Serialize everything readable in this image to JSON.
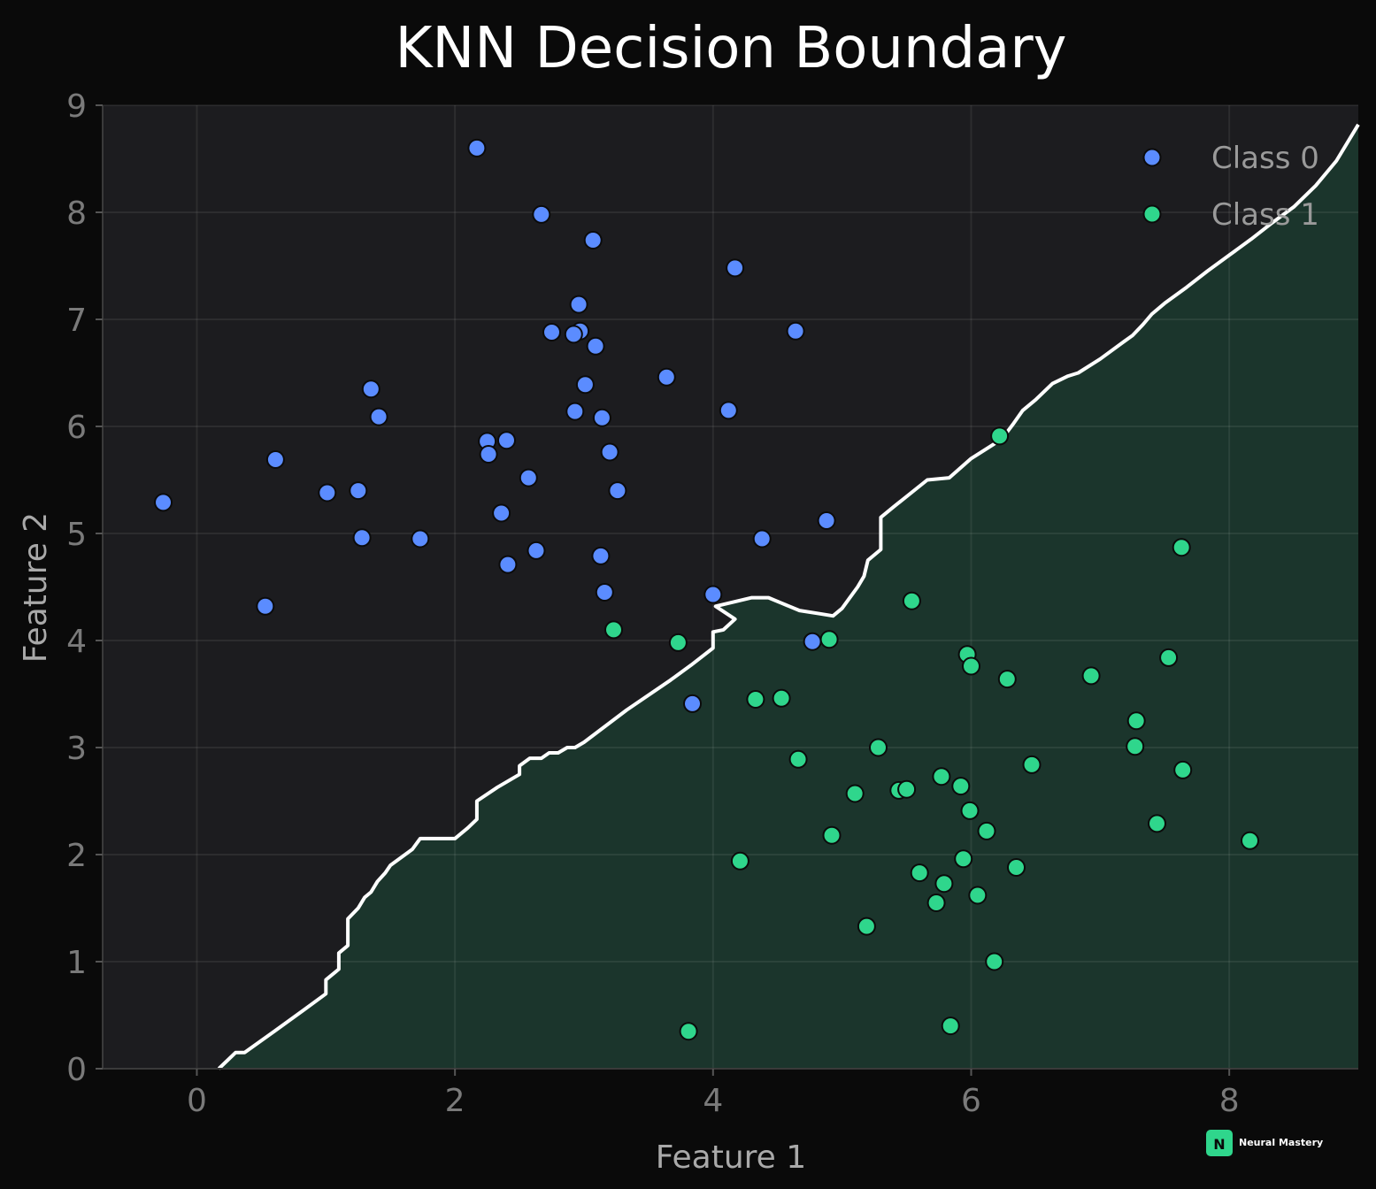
{
  "chart_data": {
    "type": "scatter",
    "title": "KNN Decision Boundary",
    "xlabel": "Feature 1",
    "ylabel": "Feature 2",
    "xlim": [
      -0.73,
      9.0
    ],
    "ylim": [
      0,
      9
    ],
    "xticks": [
      0,
      2,
      4,
      6,
      8
    ],
    "yticks": [
      0,
      1,
      2,
      3,
      4,
      5,
      6,
      7,
      8,
      9
    ],
    "grid": true,
    "legend_position": "top-right",
    "colors": {
      "background": "#0a0a0a",
      "plot_region_class0": "#1c1c1f",
      "plot_region_class1": "#1b352c",
      "boundary": "#ffffff",
      "class0": "#5b8cff",
      "class1": "#2fd68c",
      "marker_edge": "#0b0b0b",
      "brand": "#2fd68c"
    },
    "series": [
      {
        "name": "Class 0",
        "color": "#5b8cff",
        "points": [
          [
            -0.26,
            5.29
          ],
          [
            0.53,
            4.32
          ],
          [
            0.61,
            5.69
          ],
          [
            1.01,
            5.38
          ],
          [
            1.25,
            5.4
          ],
          [
            1.28,
            4.96
          ],
          [
            1.35,
            6.35
          ],
          [
            1.41,
            6.09
          ],
          [
            1.73,
            4.95
          ],
          [
            2.17,
            8.6
          ],
          [
            2.25,
            5.86
          ],
          [
            2.26,
            5.74
          ],
          [
            2.36,
            5.19
          ],
          [
            2.4,
            5.87
          ],
          [
            2.41,
            4.71
          ],
          [
            2.57,
            5.52
          ],
          [
            2.63,
            4.84
          ],
          [
            2.67,
            7.98
          ],
          [
            2.75,
            6.88
          ],
          [
            2.93,
            6.14
          ],
          [
            2.96,
            7.14
          ],
          [
            2.97,
            6.89
          ],
          [
            2.92,
            6.86
          ],
          [
            3.01,
            6.39
          ],
          [
            3.07,
            7.74
          ],
          [
            3.09,
            6.75
          ],
          [
            3.13,
            4.79
          ],
          [
            3.14,
            6.08
          ],
          [
            3.16,
            4.45
          ],
          [
            3.2,
            5.76
          ],
          [
            3.26,
            5.4
          ],
          [
            3.64,
            6.46
          ],
          [
            3.84,
            3.41
          ],
          [
            4.0,
            4.43
          ],
          [
            4.12,
            6.15
          ],
          [
            4.17,
            7.48
          ],
          [
            4.38,
            4.95
          ],
          [
            4.64,
            6.89
          ],
          [
            4.77,
            3.99
          ],
          [
            4.88,
            5.12
          ]
        ]
      },
      {
        "name": "Class 1",
        "color": "#2fd68c",
        "points": [
          [
            3.23,
            4.1
          ],
          [
            3.73,
            3.98
          ],
          [
            3.81,
            0.35
          ],
          [
            4.21,
            1.94
          ],
          [
            4.33,
            3.45
          ],
          [
            4.53,
            3.46
          ],
          [
            4.66,
            2.89
          ],
          [
            4.9,
            4.01
          ],
          [
            4.92,
            2.18
          ],
          [
            5.1,
            2.57
          ],
          [
            5.19,
            1.33
          ],
          [
            5.28,
            3.0
          ],
          [
            5.44,
            2.6
          ],
          [
            5.5,
            2.61
          ],
          [
            5.54,
            4.37
          ],
          [
            5.6,
            1.83
          ],
          [
            5.73,
            1.55
          ],
          [
            5.77,
            2.73
          ],
          [
            5.79,
            1.73
          ],
          [
            5.84,
            0.4
          ],
          [
            5.92,
            2.64
          ],
          [
            5.94,
            1.96
          ],
          [
            5.97,
            3.87
          ],
          [
            5.99,
            2.41
          ],
          [
            6.0,
            3.76
          ],
          [
            6.05,
            1.62
          ],
          [
            6.12,
            2.22
          ],
          [
            6.18,
            1.0
          ],
          [
            6.22,
            5.91
          ],
          [
            6.28,
            3.64
          ],
          [
            6.35,
            1.88
          ],
          [
            6.47,
            2.84
          ],
          [
            6.93,
            3.67
          ],
          [
            7.27,
            3.01
          ],
          [
            7.28,
            3.25
          ],
          [
            7.44,
            2.29
          ],
          [
            7.53,
            3.84
          ],
          [
            7.63,
            4.87
          ],
          [
            7.64,
            2.79
          ],
          [
            8.16,
            2.13
          ]
        ]
      }
    ],
    "decision_boundary": [
      [
        0.17,
        0.0
      ],
      [
        0.3,
        0.15
      ],
      [
        0.37,
        0.15
      ],
      [
        0.6,
        0.35
      ],
      [
        0.83,
        0.55
      ],
      [
        1.0,
        0.7
      ],
      [
        1.0,
        0.83
      ],
      [
        1.1,
        0.93
      ],
      [
        1.1,
        1.08
      ],
      [
        1.17,
        1.15
      ],
      [
        1.17,
        1.4
      ],
      [
        1.25,
        1.5
      ],
      [
        1.3,
        1.6
      ],
      [
        1.35,
        1.65
      ],
      [
        1.4,
        1.75
      ],
      [
        1.46,
        1.83
      ],
      [
        1.5,
        1.9
      ],
      [
        1.67,
        2.05
      ],
      [
        1.73,
        2.15
      ],
      [
        1.83,
        2.15
      ],
      [
        2.0,
        2.15
      ],
      [
        2.1,
        2.25
      ],
      [
        2.17,
        2.33
      ],
      [
        2.17,
        2.5
      ],
      [
        2.33,
        2.63
      ],
      [
        2.5,
        2.75
      ],
      [
        2.5,
        2.83
      ],
      [
        2.58,
        2.9
      ],
      [
        2.67,
        2.9
      ],
      [
        2.73,
        2.95
      ],
      [
        2.8,
        2.95
      ],
      [
        2.87,
        3.0
      ],
      [
        2.93,
        3.0
      ],
      [
        3.0,
        3.05
      ],
      [
        3.33,
        3.35
      ],
      [
        3.67,
        3.63
      ],
      [
        3.83,
        3.77
      ],
      [
        4.0,
        3.93
      ],
      [
        4.0,
        4.08
      ],
      [
        4.08,
        4.1
      ],
      [
        4.17,
        4.2
      ],
      [
        4.02,
        4.32
      ],
      [
        4.3,
        4.4
      ],
      [
        4.43,
        4.4
      ],
      [
        4.53,
        4.35
      ],
      [
        4.67,
        4.28
      ],
      [
        4.83,
        4.25
      ],
      [
        4.93,
        4.23
      ],
      [
        5.0,
        4.3
      ],
      [
        5.06,
        4.4
      ],
      [
        5.12,
        4.5
      ],
      [
        5.17,
        4.6
      ],
      [
        5.2,
        4.75
      ],
      [
        5.3,
        4.85
      ],
      [
        5.3,
        5.0
      ],
      [
        5.3,
        5.15
      ],
      [
        5.4,
        5.25
      ],
      [
        5.66,
        5.5
      ],
      [
        5.83,
        5.52
      ],
      [
        6.0,
        5.7
      ],
      [
        6.17,
        5.83
      ],
      [
        6.25,
        5.9
      ],
      [
        6.33,
        6.03
      ],
      [
        6.4,
        6.15
      ],
      [
        6.5,
        6.25
      ],
      [
        6.63,
        6.4
      ],
      [
        6.75,
        6.47
      ],
      [
        6.83,
        6.5
      ],
      [
        7.0,
        6.63
      ],
      [
        7.17,
        6.78
      ],
      [
        7.25,
        6.85
      ],
      [
        7.33,
        6.95
      ],
      [
        7.4,
        7.05
      ],
      [
        7.5,
        7.15
      ],
      [
        7.67,
        7.3
      ],
      [
        7.83,
        7.45
      ],
      [
        8.0,
        7.6
      ],
      [
        8.17,
        7.75
      ],
      [
        8.33,
        7.9
      ],
      [
        8.5,
        8.05
      ],
      [
        8.67,
        8.25
      ],
      [
        8.83,
        8.48
      ],
      [
        9.0,
        8.82
      ]
    ]
  },
  "branding": {
    "logo_letter": "N",
    "name": "Neural Mastery"
  }
}
